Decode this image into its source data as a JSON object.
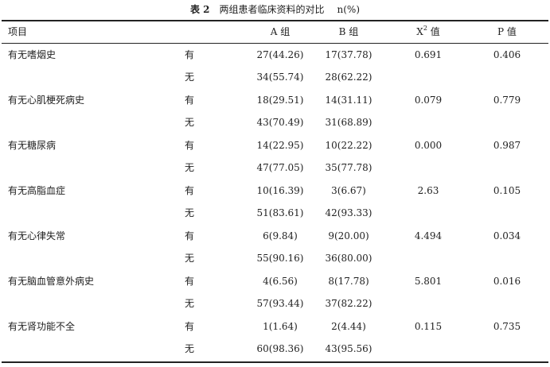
{
  "caption": {
    "label": "表 2",
    "title": "两组患者临床资料的对比",
    "unit": "n(%)"
  },
  "header": {
    "item": "项目",
    "group_a": "A 组",
    "group_b": "B 组",
    "chi_square_base": "X",
    "chi_square_sup": "2",
    "chi_square_suffix": " 值",
    "p_value": "P 值"
  },
  "rows": [
    {
      "item": "有无嗜烟史",
      "yn": "有",
      "a": "27(44.26)",
      "b": "17(37.78)",
      "x2": "0.691",
      "p": "0.406"
    },
    {
      "item": "",
      "yn": "无",
      "a": "34(55.74)",
      "b": "28(62.22)",
      "x2": "",
      "p": ""
    },
    {
      "item": "有无心肌梗死病史",
      "yn": "有",
      "a": "18(29.51)",
      "b": "14(31.11)",
      "x2": "0.079",
      "p": "0.779"
    },
    {
      "item": "",
      "yn": "无",
      "a": "43(70.49)",
      "b": "31(68.89)",
      "x2": "",
      "p": ""
    },
    {
      "item": "有无糖尿病",
      "yn": "有",
      "a": "14(22.95)",
      "b": "10(22.22)",
      "x2": "0.000",
      "p": "0.987"
    },
    {
      "item": "",
      "yn": "无",
      "a": "47(77.05)",
      "b": "35(77.78)",
      "x2": "",
      "p": ""
    },
    {
      "item": "有无高脂血症",
      "yn": "有",
      "a": "10(16.39)",
      "b": "3(6.67)",
      "x2": "2.63",
      "p": "0.105"
    },
    {
      "item": "",
      "yn": "无",
      "a": "51(83.61)",
      "b": "42(93.33)",
      "x2": "",
      "p": ""
    },
    {
      "item": "有无心律失常",
      "yn": "有",
      "a": "6(9.84)",
      "b": "9(20.00)",
      "x2": "4.494",
      "p": "0.034"
    },
    {
      "item": "",
      "yn": "无",
      "a": "55(90.16)",
      "b": "36(80.00)",
      "x2": "",
      "p": ""
    },
    {
      "item": "有无脑血管意外病史",
      "yn": "有",
      "a": "4(6.56)",
      "b": "8(17.78)",
      "x2": "5.801",
      "p": "0.016"
    },
    {
      "item": "",
      "yn": "无",
      "a": "57(93.44)",
      "b": "37(82.22)",
      "x2": "",
      "p": ""
    },
    {
      "item": "有无肾功能不全",
      "yn": "有",
      "a": "1(1.64)",
      "b": "2(4.44)",
      "x2": "0.115",
      "p": "0.735"
    },
    {
      "item": "",
      "yn": "无",
      "a": "60(98.36)",
      "b": "43(95.56)",
      "x2": "",
      "p": ""
    }
  ]
}
